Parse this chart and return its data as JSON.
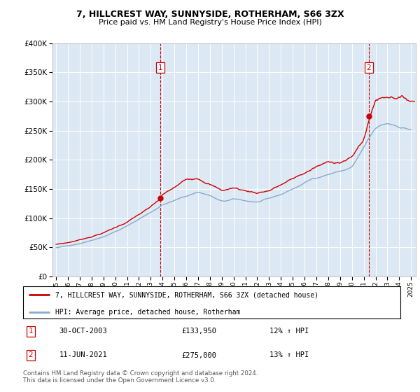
{
  "title": "7, HILLCREST WAY, SUNNYSIDE, ROTHERHAM, S66 3ZX",
  "subtitle": "Price paid vs. HM Land Registry's House Price Index (HPI)",
  "legend_line1": "7, HILLCREST WAY, SUNNYSIDE, ROTHERHAM, S66 3ZX (detached house)",
  "legend_line2": "HPI: Average price, detached house, Rotherham",
  "footer_line1": "Contains HM Land Registry data © Crown copyright and database right 2024.",
  "footer_line2": "This data is licensed under the Open Government Licence v3.0.",
  "transaction1_date": "30-OCT-2003",
  "transaction1_price": "£133,950",
  "transaction1_hpi": "12% ↑ HPI",
  "transaction2_date": "11-JUN-2021",
  "transaction2_price": "£275,000",
  "transaction2_hpi": "13% ↑ HPI",
  "background_color": "#dce8f3",
  "red_color": "#cc0000",
  "blue_color": "#88aacc",
  "ylim": [
    0,
    400000
  ],
  "yticks": [
    0,
    50000,
    100000,
    150000,
    200000,
    250000,
    300000,
    350000,
    400000
  ],
  "transaction1_x": 2003.83,
  "transaction2_x": 2021.44,
  "transaction1_y": 133950,
  "transaction2_y": 275000,
  "xmin": 1995.0,
  "xmax": 2025.3
}
